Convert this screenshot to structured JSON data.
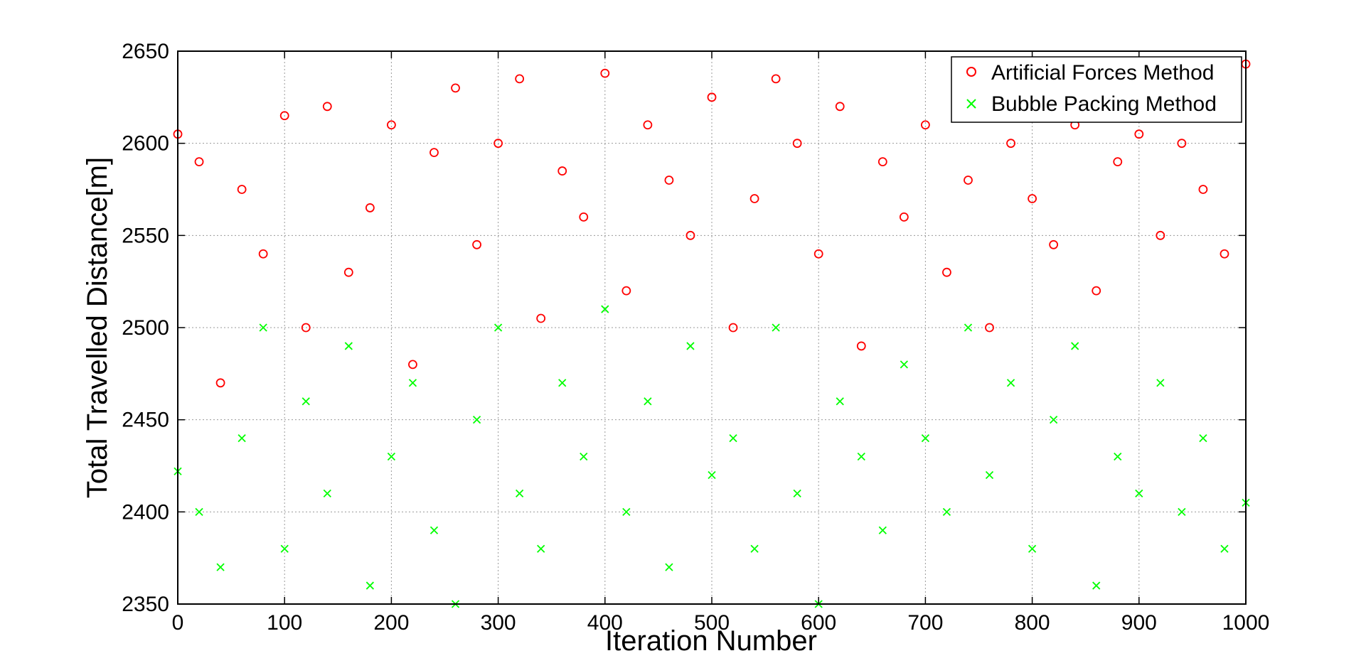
{
  "chart_data": {
    "type": "scatter",
    "title": "",
    "xlabel": "Iteration Number",
    "ylabel": "Total Travelled Distance[m]",
    "xlim": [
      0,
      1000
    ],
    "ylim": [
      2350,
      2650
    ],
    "xticks": [
      0,
      100,
      200,
      300,
      400,
      500,
      600,
      700,
      800,
      900,
      1000
    ],
    "yticks": [
      2350,
      2400,
      2450,
      2500,
      2550,
      2600,
      2650
    ],
    "grid": true,
    "legend_position": "top-right",
    "series": [
      {
        "name": "Artificial Forces Method",
        "marker": "circle",
        "color": "#ff0000",
        "y_range": [
          2462,
          2643
        ],
        "x": [
          0,
          20,
          40,
          60,
          80,
          100,
          120,
          140,
          160,
          180,
          200,
          220,
          240,
          260,
          280,
          300,
          320,
          340,
          360,
          380,
          400,
          420,
          440,
          460,
          480,
          500,
          520,
          540,
          560,
          580,
          600,
          620,
          640,
          660,
          680,
          700,
          720,
          740,
          760,
          780,
          800,
          820,
          840,
          860,
          880,
          900,
          920,
          940,
          960,
          980,
          1000
        ],
        "y": [
          2605,
          2590,
          2470,
          2575,
          2540,
          2615,
          2500,
          2620,
          2530,
          2565,
          2610,
          2480,
          2595,
          2630,
          2545,
          2600,
          2635,
          2505,
          2585,
          2560,
          2638,
          2520,
          2610,
          2580,
          2550,
          2625,
          2500,
          2570,
          2635,
          2600,
          2540,
          2620,
          2490,
          2590,
          2560,
          2610,
          2530,
          2580,
          2500,
          2600,
          2570,
          2545,
          2610,
          2520,
          2590,
          2605,
          2550,
          2600,
          2575,
          2540,
          2643
        ]
      },
      {
        "name": "Bubble Packing Method",
        "marker": "x",
        "color": "#00ff00",
        "y_range": [
          2350,
          2520
        ],
        "x": [
          0,
          20,
          40,
          60,
          80,
          100,
          120,
          140,
          160,
          180,
          200,
          220,
          240,
          260,
          280,
          300,
          320,
          340,
          360,
          380,
          400,
          420,
          440,
          460,
          480,
          500,
          520,
          540,
          560,
          580,
          600,
          620,
          640,
          660,
          680,
          700,
          720,
          740,
          760,
          780,
          800,
          820,
          840,
          860,
          880,
          900,
          920,
          940,
          960,
          980,
          1000
        ],
        "y": [
          2422,
          2400,
          2370,
          2440,
          2500,
          2380,
          2460,
          2410,
          2490,
          2360,
          2430,
          2470,
          2390,
          2350,
          2450,
          2500,
          2410,
          2380,
          2470,
          2430,
          2510,
          2400,
          2460,
          2370,
          2490,
          2420,
          2440,
          2380,
          2500,
          2410,
          2350,
          2460,
          2430,
          2390,
          2480,
          2440,
          2400,
          2500,
          2420,
          2470,
          2380,
          2450,
          2490,
          2360,
          2430,
          2410,
          2470,
          2400,
          2440,
          2380,
          2405
        ]
      }
    ]
  }
}
